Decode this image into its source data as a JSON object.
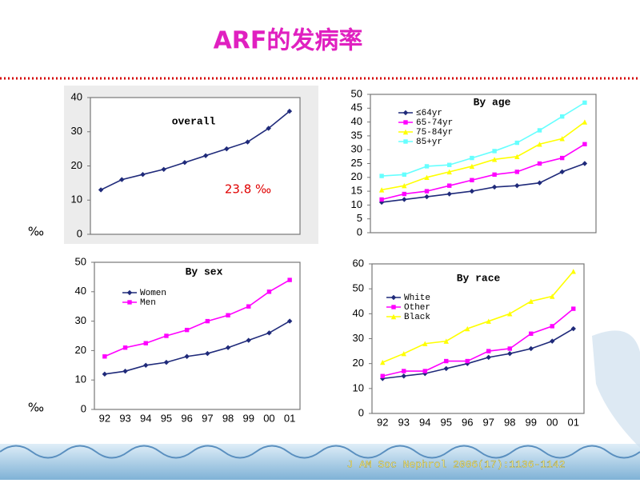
{
  "title": "ARF的发病率",
  "unit_labels": [
    "‰",
    "‰"
  ],
  "citation": "J AM Soc Nephrol 2006(17):1136-1142",
  "chart_data": [
    {
      "type": "line",
      "title": "overall",
      "annotation": "23.8 ‰",
      "categories": [
        null,
        null,
        null,
        null,
        null,
        null,
        null,
        null,
        null,
        null
      ],
      "values": [
        13,
        16,
        17.5,
        19,
        21,
        23,
        25,
        27,
        31,
        36
      ],
      "color": "#1f2a7a",
      "ylim": [
        0,
        40
      ],
      "yticks": [
        0,
        10,
        20,
        30,
        40
      ]
    },
    {
      "type": "line",
      "title": "By age",
      "legend": "upper left",
      "categories": [
        null,
        null,
        null,
        null,
        null,
        null,
        null,
        null,
        null,
        null
      ],
      "series": [
        {
          "name": "≤64yr",
          "color": "#1f2a7a",
          "values": [
            11,
            12,
            13,
            14,
            15,
            16.5,
            17,
            18,
            22,
            25
          ]
        },
        {
          "name": "65-74yr",
          "color": "#ff00ff",
          "values": [
            12,
            14,
            15,
            17,
            19,
            21,
            22,
            25,
            27,
            32
          ]
        },
        {
          "name": "75-84yr",
          "color": "#ffff00",
          "values": [
            15.5,
            17,
            20,
            22,
            24,
            26.5,
            27.5,
            32,
            34,
            40
          ]
        },
        {
          "name": "85+yr",
          "color": "#66ffff",
          "values": [
            20.5,
            21,
            24,
            24.5,
            27,
            29.5,
            32.5,
            37,
            42,
            47
          ]
        }
      ],
      "ylim": [
        0,
        50
      ],
      "yticks": [
        0,
        5,
        10,
        15,
        20,
        25,
        30,
        35,
        40,
        45,
        50
      ]
    },
    {
      "type": "line",
      "title": "By sex",
      "legend": "upper left",
      "categories": [
        "92",
        "93",
        "94",
        "95",
        "96",
        "97",
        "98",
        "99",
        "00",
        "01"
      ],
      "series": [
        {
          "name": "Women",
          "color": "#1f2a7a",
          "values": [
            12,
            13,
            15,
            16,
            18,
            19,
            21,
            23.5,
            26,
            30
          ]
        },
        {
          "name": "Men",
          "color": "#ff00ff",
          "values": [
            18,
            21,
            22.5,
            25,
            27,
            30,
            32,
            35,
            40,
            44
          ]
        }
      ],
      "ylim": [
        0,
        50
      ],
      "yticks": [
        0,
        10,
        20,
        30,
        40,
        50
      ]
    },
    {
      "type": "line",
      "title": "By race",
      "legend": "upper left",
      "categories": [
        "92",
        "93",
        "94",
        "95",
        "96",
        "97",
        "98",
        "99",
        "00",
        "01"
      ],
      "series": [
        {
          "name": "White",
          "color": "#1f2a7a",
          "values": [
            14,
            15,
            16,
            18,
            20,
            22.5,
            24,
            26,
            29,
            34
          ]
        },
        {
          "name": "Other",
          "color": "#ff00ff",
          "values": [
            15,
            17,
            17,
            21,
            21,
            25,
            26,
            32,
            35,
            42
          ]
        },
        {
          "name": "Black",
          "color": "#ffff00",
          "values": [
            20.5,
            24,
            28,
            29,
            34,
            37,
            40,
            45,
            47,
            57
          ]
        }
      ],
      "ylim": [
        0,
        60
      ],
      "yticks": [
        0,
        10,
        20,
        30,
        40,
        50,
        60
      ]
    }
  ]
}
